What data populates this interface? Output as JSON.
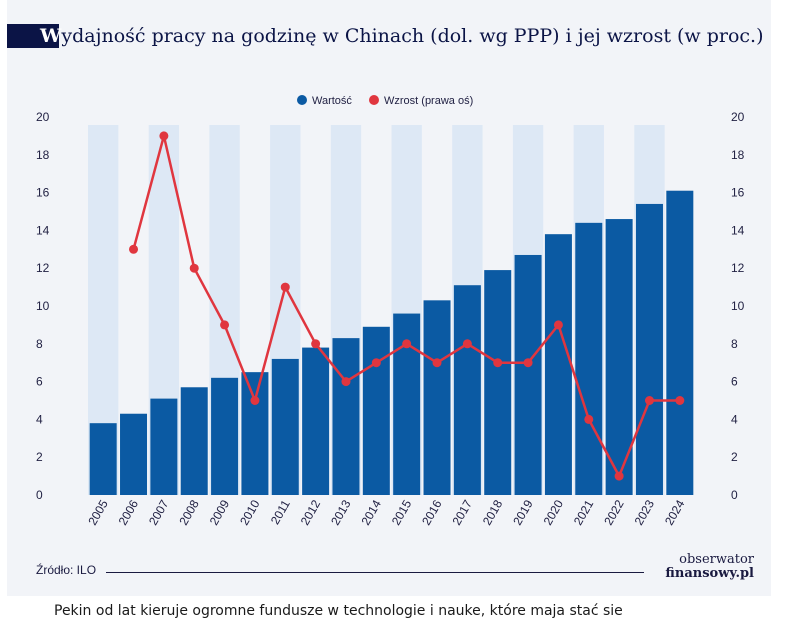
{
  "title_first_letter": "W",
  "title_rest": "ydajność pracy na godzinę w Chinach (dol. wg PPP) i jej wzrost (w proc.)",
  "source": "Źródło: ILO",
  "logo": {
    "line1": "obserwator",
    "line2": "finansowy.pl"
  },
  "caption": "Pekin od lat kieruje ogromne fundusze w technologie i nauke, które maja stać sie",
  "colors": {
    "bar": "#0b5aa3",
    "line": "#e0363f",
    "band": "#dde8f5",
    "card": "#f2f4f8",
    "title_block": "#0b1446"
  },
  "chart_data": {
    "type": "bar+line",
    "title": "Wydajność pracy na godzinę w Chinach (dol. wg PPP) i jej wzrost (w proc.)",
    "categories": [
      "2005",
      "2006",
      "2007",
      "2008",
      "2009",
      "2010",
      "2011",
      "2012",
      "2013",
      "2014",
      "2015",
      "2016",
      "2017",
      "2018",
      "2019",
      "2020",
      "2021",
      "2022",
      "2023",
      "2024"
    ],
    "series": [
      {
        "name": "Wartość",
        "type": "bar",
        "axis": "left",
        "values": [
          3.8,
          4.3,
          5.1,
          5.7,
          6.2,
          6.5,
          7.2,
          7.8,
          8.3,
          8.9,
          9.6,
          10.3,
          11.1,
          11.9,
          12.7,
          13.8,
          14.4,
          14.6,
          15.4,
          16.1
        ]
      },
      {
        "name": "Wzrost (prawa oś)",
        "type": "line",
        "axis": "right",
        "values": [
          null,
          13,
          19,
          12,
          9,
          5,
          11,
          8,
          6,
          7,
          8,
          7,
          8,
          7,
          7,
          9,
          4,
          1,
          5,
          5
        ]
      }
    ],
    "ylim": [
      0,
      20
    ],
    "y2lim": [
      0,
      20
    ],
    "yticks": [
      "0",
      "2",
      "4",
      "6",
      "8",
      "10",
      "12",
      "14",
      "16",
      "18",
      "20"
    ],
    "grid": false,
    "alternating_bands": true,
    "legend": "top-center"
  }
}
